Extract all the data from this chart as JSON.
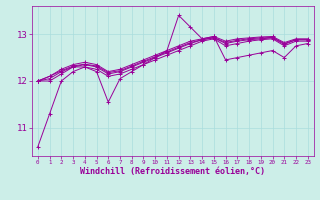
{
  "title": "",
  "xlabel": "Windchill (Refroidissement éolien,°C)",
  "ylabel": "",
  "background_color": "#cceee8",
  "grid_color": "#aadddd",
  "line_color": "#990099",
  "x_ticks": [
    0,
    1,
    2,
    3,
    4,
    5,
    6,
    7,
    8,
    9,
    10,
    11,
    12,
    13,
    14,
    15,
    16,
    17,
    18,
    19,
    20,
    21,
    22,
    23
  ],
  "y_ticks": [
    11,
    12,
    13
  ],
  "ylim": [
    10.4,
    13.6
  ],
  "xlim": [
    -0.5,
    23.5
  ],
  "series": [
    [
      10.6,
      11.3,
      12.0,
      12.2,
      12.3,
      12.2,
      11.55,
      12.05,
      12.2,
      12.35,
      12.5,
      12.65,
      13.4,
      13.15,
      12.9,
      12.95,
      12.45,
      12.5,
      12.55,
      12.6,
      12.65,
      12.5,
      12.75,
      12.8
    ],
    [
      12.0,
      12.0,
      12.15,
      12.3,
      12.3,
      12.25,
      12.1,
      12.15,
      12.25,
      12.35,
      12.45,
      12.55,
      12.65,
      12.75,
      12.85,
      12.9,
      12.75,
      12.8,
      12.85,
      12.88,
      12.9,
      12.75,
      12.85,
      12.85
    ],
    [
      12.0,
      12.05,
      12.2,
      12.3,
      12.35,
      12.3,
      12.15,
      12.2,
      12.3,
      12.4,
      12.5,
      12.6,
      12.7,
      12.8,
      12.88,
      12.92,
      12.8,
      12.85,
      12.88,
      12.9,
      12.92,
      12.78,
      12.88,
      12.88
    ],
    [
      12.0,
      12.1,
      12.25,
      12.35,
      12.4,
      12.35,
      12.2,
      12.25,
      12.35,
      12.45,
      12.55,
      12.65,
      12.75,
      12.85,
      12.9,
      12.95,
      12.85,
      12.9,
      12.92,
      12.94,
      12.95,
      12.82,
      12.9,
      12.9
    ],
    [
      12.0,
      12.1,
      12.22,
      12.32,
      12.36,
      12.32,
      12.18,
      12.22,
      12.32,
      12.42,
      12.52,
      12.62,
      12.72,
      12.82,
      12.88,
      12.93,
      12.82,
      12.87,
      12.9,
      12.92,
      12.93,
      12.8,
      12.88,
      12.88
    ]
  ],
  "xlabel_fontsize": 6.0,
  "tick_labelsize": 5.5,
  "linewidth": 0.7,
  "markersize": 2.5
}
